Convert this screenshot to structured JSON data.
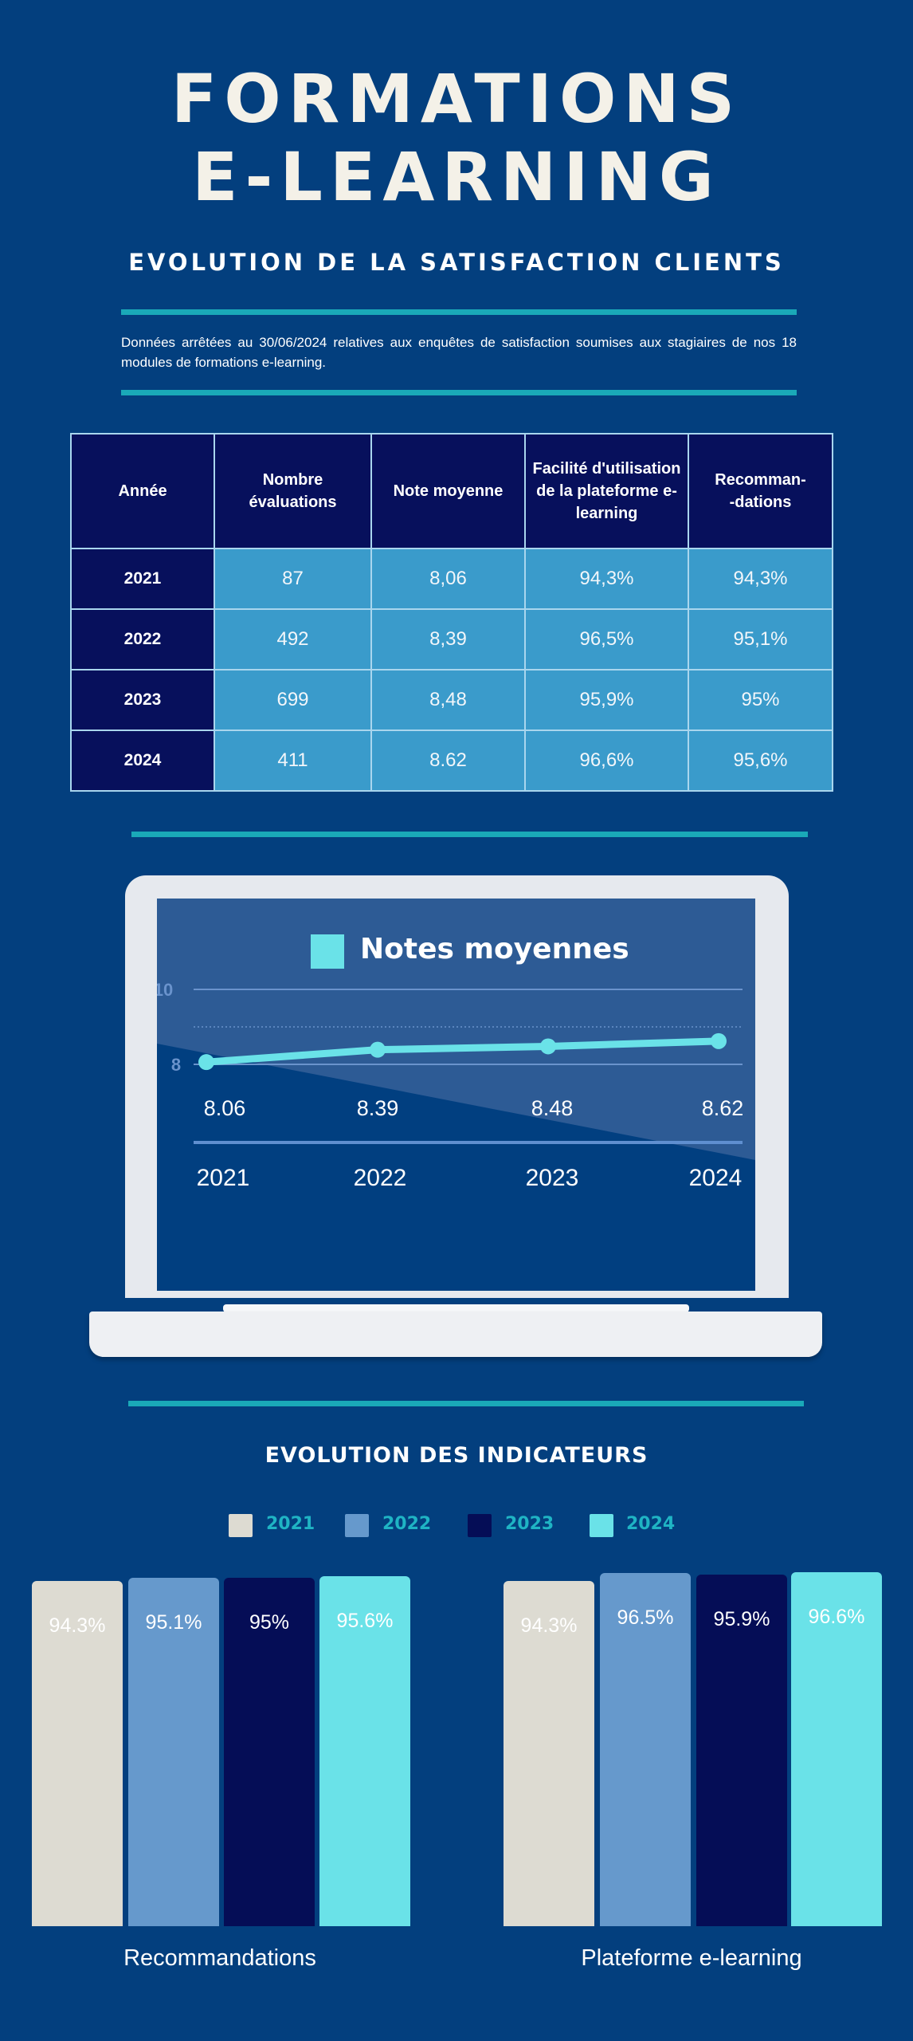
{
  "header": {
    "title_line1": "FORMATIONS",
    "title_line2": "E-LEARNING",
    "subtitle": "EVOLUTION DE LA SATISFACTION CLIENTS",
    "description": "Données arrêtées au 30/06/2024 relatives aux enquêtes de satisfaction soumises aux stagiaires de nos 18 modules de formations e-learning."
  },
  "table": {
    "headers": [
      "Année",
      "Nombre évaluations",
      "Note moyenne",
      "Facilité d'utilisation de la plateforme e-learning",
      "Recomman--dations"
    ],
    "rows": [
      [
        "2021",
        "87",
        "8,06",
        "94,3%",
        "94,3%"
      ],
      [
        "2022",
        "492",
        "8,39",
        "96,5%",
        "95,1%"
      ],
      [
        "2023",
        "699",
        "8,48",
        "95,9%",
        "95%"
      ],
      [
        "2024",
        "411",
        "8.62",
        "96,6%",
        "95,6%"
      ]
    ]
  },
  "chart_data": [
    {
      "type": "line",
      "title": "Notes moyennes",
      "x": [
        "2021",
        "2022",
        "2023",
        "2024"
      ],
      "values": [
        8.06,
        8.39,
        8.48,
        8.62
      ],
      "value_labels": [
        "8.06",
        "8.39",
        "8.48",
        "8.62"
      ],
      "y_ticks": [
        "10",
        "8"
      ],
      "ylim": [
        8,
        10
      ],
      "color": "#6ae2e8"
    },
    {
      "type": "bar",
      "title": "EVOLUTION DES INDICATEURS",
      "legend": [
        "2021",
        "2022",
        "2023",
        "2024"
      ],
      "legend_placement": "top",
      "colors": [
        "#dddbd2",
        "#6699cc",
        "#050d56",
        "#6ae2e8"
      ],
      "groups": [
        {
          "name": "Recommandations",
          "values": [
            94.3,
            95.1,
            95,
            95.6
          ],
          "labels": [
            "94.3%",
            "95.1%",
            "95%",
            "95.6%"
          ]
        },
        {
          "name": "Plateforme e-learning",
          "values": [
            94.3,
            96.5,
            95.9,
            96.6
          ],
          "labels": [
            "94.3%",
            "96.5%",
            "95.9%",
            "96.6%"
          ]
        }
      ]
    }
  ]
}
